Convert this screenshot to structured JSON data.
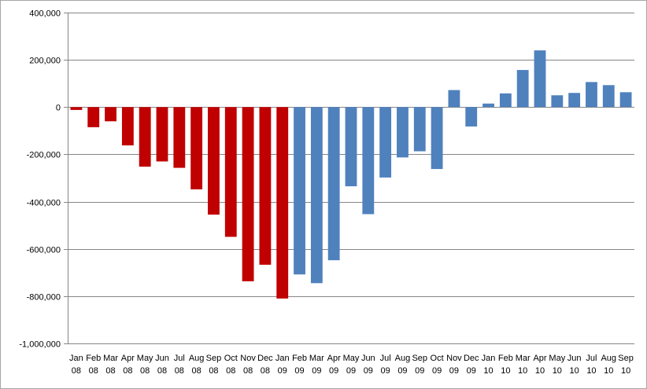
{
  "chart_data": {
    "type": "bar",
    "title": "",
    "xlabel": "",
    "ylabel": "",
    "ylim": [
      -1000000,
      400000
    ],
    "yticks": [
      400000,
      200000,
      0,
      -200000,
      -400000,
      -600000,
      -800000,
      -1000000
    ],
    "ytick_labels": [
      "400,000",
      "200,000",
      "0",
      "-200,000",
      "-400,000",
      "-600,000",
      "-800,000",
      "-1,000,000"
    ],
    "grid": true,
    "legend": "none",
    "categories": [
      [
        "Jan",
        "08"
      ],
      [
        "Feb",
        "08"
      ],
      [
        "Mar",
        "08"
      ],
      [
        "Apr",
        "08"
      ],
      [
        "May",
        "08"
      ],
      [
        "Jun",
        "08"
      ],
      [
        "Jul",
        "08"
      ],
      [
        "Aug",
        "08"
      ],
      [
        "Sep",
        "08"
      ],
      [
        "Oct",
        "08"
      ],
      [
        "Nov",
        "08"
      ],
      [
        "Dec",
        "08"
      ],
      [
        "Jan",
        "09"
      ],
      [
        "Feb",
        "09"
      ],
      [
        "Mar",
        "09"
      ],
      [
        "Apr",
        "09"
      ],
      [
        "May",
        "09"
      ],
      [
        "Jun",
        "09"
      ],
      [
        "Jul",
        "09"
      ],
      [
        "Aug",
        "09"
      ],
      [
        "Sep",
        "09"
      ],
      [
        "Oct",
        "09"
      ],
      [
        "Nov",
        "09"
      ],
      [
        "Dec",
        "09"
      ],
      [
        "Jan",
        "10"
      ],
      [
        "Feb",
        "10"
      ],
      [
        "Mar",
        "10"
      ],
      [
        "Apr",
        "10"
      ],
      [
        "May",
        "10"
      ],
      [
        "Jun",
        "10"
      ],
      [
        "Jul",
        "10"
      ],
      [
        "Aug",
        "10"
      ],
      [
        "Sep",
        "10"
      ]
    ],
    "values": [
      -12000,
      -85000,
      -60000,
      -162000,
      -252000,
      -230000,
      -257000,
      -348000,
      -455000,
      -549000,
      -737000,
      -667000,
      -810000,
      -708000,
      -745000,
      -648000,
      -335000,
      -453000,
      -298000,
      -213000,
      -187000,
      -262000,
      72000,
      -82000,
      15000,
      58000,
      157000,
      240000,
      50000,
      60000,
      106000,
      93000,
      63000
    ],
    "colors": {
      "red": "#c00000",
      "blue": "#4f81bd",
      "red_count": 13,
      "grid": "#868686",
      "axis": "#868686"
    }
  }
}
